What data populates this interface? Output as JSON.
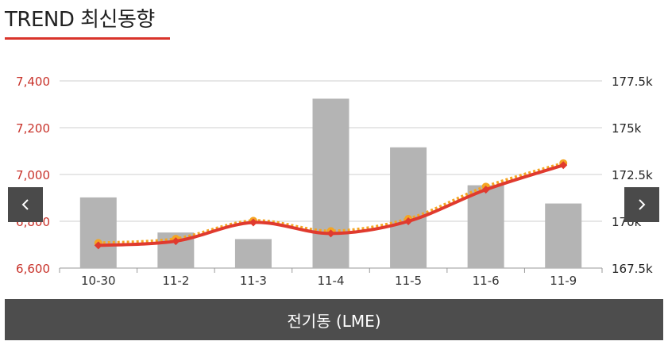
{
  "header": {
    "title": "TREND 최신동향"
  },
  "caption": "전기동 (LME)",
  "colors": {
    "bar": "#b4b4b4",
    "line": "#e03a2e",
    "line_dotted": "#f4a524",
    "left_axis": "#c8322a",
    "right_axis": "#222222",
    "accent": "#d9342b"
  },
  "chart_data": {
    "type": "bar",
    "categories": [
      "10-30",
      "11-2",
      "11-3",
      "11-4",
      "11-5",
      "11-6",
      "11-9"
    ],
    "left_axis": {
      "ticks": [
        "7,400",
        "7,200",
        "7,000",
        "6,800",
        "6,600"
      ],
      "ylim": [
        6600,
        7400
      ]
    },
    "right_axis": {
      "ticks": [
        "177.5k",
        "175k",
        "172.5k",
        "170k",
        "167.5k"
      ],
      "ylim": [
        167500,
        177500
      ]
    },
    "series": [
      {
        "type": "bar",
        "axis": "right",
        "values": [
          171275,
          169400,
          169050,
          176550,
          173950,
          171925,
          170950
        ]
      },
      {
        "type": "line",
        "axis": "left",
        "values": [
          6697,
          6715,
          6795,
          6748,
          6800,
          6935,
          7040
        ]
      },
      {
        "type": "line",
        "style": "dotted",
        "axis": "left",
        "values": [
          6707,
          6725,
          6802,
          6758,
          6810,
          6948,
          7048
        ]
      }
    ],
    "grid": true
  },
  "nav": {
    "prev_icon": "chevron-left-icon",
    "next_icon": "chevron-right-icon"
  }
}
